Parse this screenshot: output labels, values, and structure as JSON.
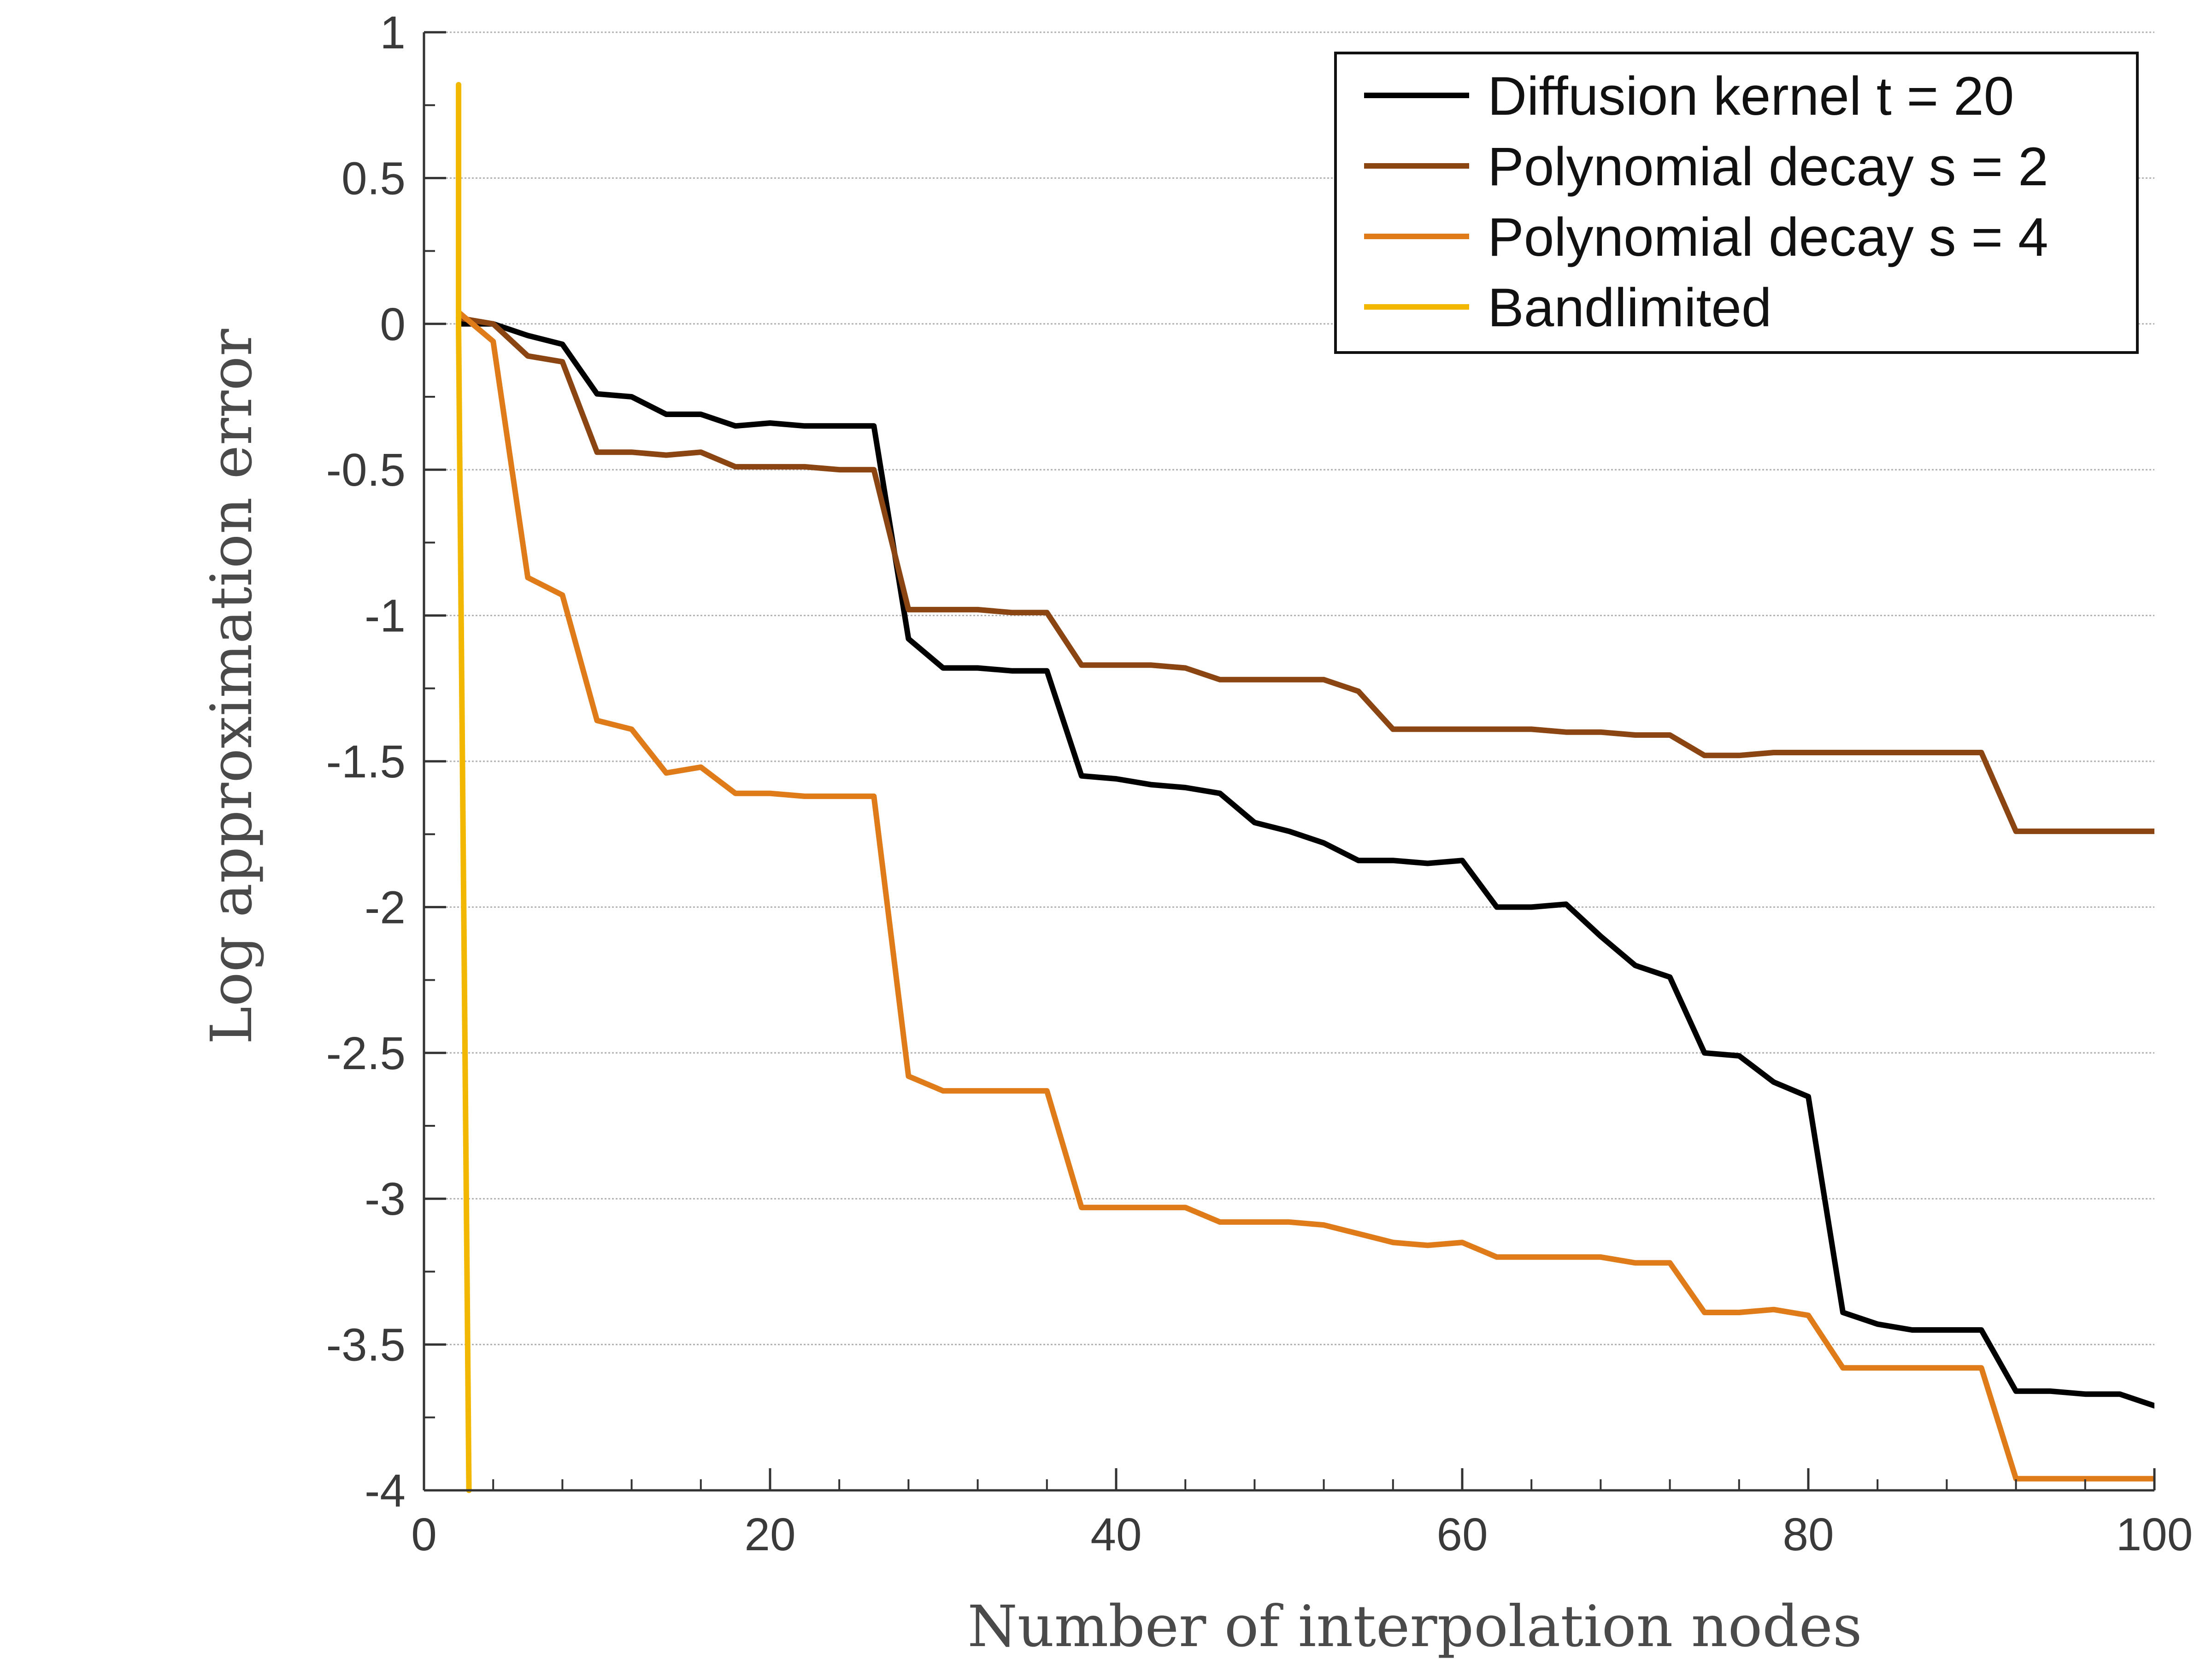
{
  "chart_data": {
    "type": "line",
    "title": "",
    "xlabel": "Number of interpolation nodes",
    "ylabel": "Log approximation error",
    "xlim": [
      0,
      100
    ],
    "ylim": [
      -4,
      1
    ],
    "xticks": [
      0,
      20,
      40,
      60,
      80,
      100
    ],
    "xtick_labels": [
      "0",
      "20",
      "40",
      "60",
      "80",
      "100"
    ],
    "yticks": [
      1,
      0.5,
      0,
      -0.5,
      -1,
      -1.5,
      -2,
      -2.5,
      -3,
      -3.5,
      -4
    ],
    "ytick_labels": [
      "1",
      "0.5",
      "0",
      "-0.5",
      "-1",
      "-1.5",
      "-2",
      "-2.5",
      "-3",
      "-3.5",
      "-4"
    ],
    "grid": "horizontal",
    "legend_position": "top-right",
    "series": [
      {
        "name": "Diffusion kernel t = 20",
        "color": "#000000",
        "x": [
          2,
          4,
          6,
          8,
          10,
          12,
          14,
          16,
          18,
          20,
          22,
          24,
          26,
          28,
          30,
          32,
          34,
          36,
          38,
          40,
          42,
          44,
          46,
          48,
          50,
          52,
          54,
          56,
          58,
          60,
          62,
          64,
          66,
          68,
          70,
          72,
          74,
          76,
          78,
          80,
          82,
          84,
          86,
          88,
          90,
          92,
          94,
          96,
          98,
          100
        ],
        "y": [
          0,
          0,
          -0.04,
          -0.07,
          -0.24,
          -0.25,
          -0.31,
          -0.31,
          -0.35,
          -0.34,
          -0.35,
          -0.35,
          -0.35,
          -1.08,
          -1.18,
          -1.18,
          -1.19,
          -1.19,
          -1.55,
          -1.56,
          -1.58,
          -1.59,
          -1.61,
          -1.71,
          -1.74,
          -1.78,
          -1.84,
          -1.84,
          -1.85,
          -1.84,
          -2.0,
          -2.0,
          -1.99,
          -2.1,
          -2.2,
          -2.24,
          -2.5,
          -2.51,
          -2.6,
          -2.65,
          -3.39,
          -3.43,
          -3.45,
          -3.45,
          -3.45,
          -3.66,
          -3.66,
          -3.67,
          -3.67,
          -3.71
        ]
      },
      {
        "name": "Polynomial decay s = 2",
        "color": "#8b4513",
        "x": [
          2,
          4,
          6,
          8,
          10,
          12,
          14,
          16,
          18,
          20,
          22,
          24,
          26,
          28,
          30,
          32,
          34,
          36,
          38,
          40,
          42,
          44,
          46,
          48,
          50,
          52,
          54,
          56,
          58,
          60,
          62,
          64,
          66,
          68,
          70,
          72,
          74,
          76,
          78,
          80,
          82,
          84,
          86,
          88,
          90,
          92,
          94,
          96,
          98,
          100
        ],
        "y": [
          0.02,
          0,
          -0.11,
          -0.13,
          -0.44,
          -0.44,
          -0.45,
          -0.44,
          -0.49,
          -0.49,
          -0.49,
          -0.5,
          -0.5,
          -0.98,
          -0.98,
          -0.98,
          -0.99,
          -0.99,
          -1.17,
          -1.17,
          -1.17,
          -1.18,
          -1.22,
          -1.22,
          -1.22,
          -1.22,
          -1.26,
          -1.39,
          -1.39,
          -1.39,
          -1.39,
          -1.39,
          -1.4,
          -1.4,
          -1.41,
          -1.41,
          -1.48,
          -1.48,
          -1.47,
          -1.47,
          -1.47,
          -1.47,
          -1.47,
          -1.47,
          -1.47,
          -1.74,
          -1.74,
          -1.74,
          -1.74,
          -1.74
        ]
      },
      {
        "name": "Polynomial decay s = 4",
        "color": "#e07b1a",
        "x": [
          2,
          4,
          6,
          8,
          10,
          12,
          14,
          16,
          18,
          20,
          22,
          24,
          26,
          28,
          30,
          32,
          34,
          36,
          38,
          40,
          42,
          44,
          46,
          48,
          50,
          52,
          54,
          56,
          58,
          60,
          62,
          64,
          66,
          68,
          70,
          72,
          74,
          76,
          78,
          80,
          82,
          84,
          86,
          88,
          90,
          92,
          94,
          96,
          98,
          100
        ],
        "y": [
          0.04,
          -0.06,
          -0.87,
          -0.93,
          -1.36,
          -1.39,
          -1.54,
          -1.52,
          -1.61,
          -1.61,
          -1.62,
          -1.62,
          -1.62,
          -2.58,
          -2.63,
          -2.63,
          -2.63,
          -2.63,
          -3.03,
          -3.03,
          -3.03,
          -3.03,
          -3.08,
          -3.08,
          -3.08,
          -3.09,
          -3.12,
          -3.15,
          -3.16,
          -3.15,
          -3.2,
          -3.2,
          -3.2,
          -3.2,
          -3.22,
          -3.22,
          -3.39,
          -3.39,
          -3.38,
          -3.4,
          -3.58,
          -3.58,
          -3.58,
          -3.58,
          -3.58,
          -3.96,
          -3.96,
          -3.96,
          -3.96,
          -3.96
        ]
      },
      {
        "name": "Bandlimited",
        "color": "#f2b700",
        "x": [
          2,
          2,
          2.6
        ],
        "y": [
          0.82,
          -0.02,
          -4
        ]
      }
    ]
  }
}
